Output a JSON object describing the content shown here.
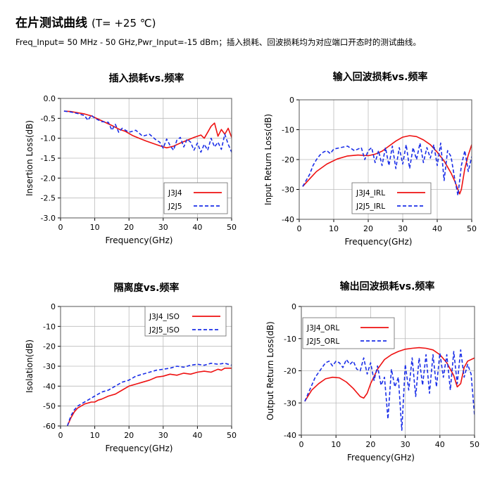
{
  "header": {
    "title": "在片测试曲线",
    "condition": "(T= +25 ℃)",
    "subtitle": "Freq_Input= 50 MHz - 50 GHz,Pwr_Input=-15 dBm；插入损耗、回波损耗均为对应端口开态时的测试曲线。"
  },
  "colors": {
    "red": "#ee1111",
    "blue": "#1a2ee8",
    "grid": "#bbbbbb"
  },
  "chart_data": [
    {
      "id": "il",
      "type": "line",
      "title": "插入损耗vs.频率",
      "xlabel": "Frequency(GHz)",
      "ylabel": "Insertion Loss(dB)",
      "xlim": [
        0,
        50
      ],
      "ylim": [
        -3.0,
        0.0
      ],
      "xticks": [
        0,
        10,
        20,
        30,
        40,
        50
      ],
      "yticks": [
        0.0,
        -0.5,
        -1.0,
        -1.5,
        -2.0,
        -2.5,
        -3.0
      ],
      "ytick_labels": [
        "0.0",
        "-0.5",
        "-1.0",
        "-1.5",
        "-2.0",
        "-2.5",
        "-3.0"
      ],
      "legend_position": "bottom-right",
      "series": [
        {
          "name": "J3J4",
          "color": "red",
          "dashed": false,
          "x": [
            1,
            3,
            5,
            7,
            9,
            11,
            13,
            15,
            17,
            19,
            21,
            23,
            25,
            27,
            29,
            31,
            33,
            35,
            37,
            39,
            41,
            42,
            43,
            44,
            45,
            46,
            47,
            48,
            49,
            50
          ],
          "y": [
            -0.32,
            -0.33,
            -0.36,
            -0.39,
            -0.44,
            -0.52,
            -0.6,
            -0.68,
            -0.77,
            -0.83,
            -0.93,
            -1.0,
            -1.07,
            -1.13,
            -1.19,
            -1.24,
            -1.2,
            -1.12,
            -1.05,
            -0.98,
            -0.92,
            -1.0,
            -0.85,
            -0.7,
            -0.62,
            -0.95,
            -0.78,
            -0.9,
            -0.75,
            -0.98
          ]
        },
        {
          "name": "J2J5",
          "color": "blue",
          "dashed": true,
          "x": [
            1,
            3,
            5,
            7,
            8,
            9,
            10,
            12,
            14,
            15,
            16,
            17,
            18,
            20,
            22,
            24,
            26,
            28,
            29,
            30,
            31,
            32,
            33,
            34,
            35,
            36,
            37,
            38,
            39,
            40,
            41,
            42,
            43,
            44,
            45,
            46,
            47,
            48,
            49,
            50
          ],
          "y": [
            -0.32,
            -0.34,
            -0.38,
            -0.43,
            -0.55,
            -0.42,
            -0.5,
            -0.58,
            -0.6,
            -0.8,
            -0.65,
            -0.85,
            -0.75,
            -0.85,
            -0.8,
            -0.95,
            -0.9,
            -1.05,
            -1.1,
            -1.25,
            -1.02,
            -1.18,
            -1.3,
            -1.05,
            -0.98,
            -1.22,
            -1.02,
            -1.1,
            -1.3,
            -1.12,
            -1.35,
            -1.15,
            -1.3,
            -1.0,
            -1.22,
            -1.1,
            -1.28,
            -0.9,
            -1.15,
            -1.35
          ]
        }
      ]
    },
    {
      "id": "irl",
      "type": "line",
      "title": "输入回波损耗vs.频率",
      "xlabel": "Frequency(GHz)",
      "ylabel": "Input Return Loss(dB)",
      "xlim": [
        0,
        50
      ],
      "ylim": [
        -40,
        0
      ],
      "xticks": [
        0,
        10,
        20,
        30,
        40,
        50
      ],
      "yticks": [
        0,
        -10,
        -20,
        -30,
        -40
      ],
      "ytick_labels": [
        "0",
        "-10",
        "-20",
        "-30",
        "-40"
      ],
      "legend_position": "bottom-center",
      "series": [
        {
          "name": "J3J4_IRL",
          "color": "red",
          "dashed": false,
          "x": [
            1,
            3,
            5,
            8,
            11,
            14,
            17,
            20,
            22,
            24,
            26,
            28,
            30,
            32,
            34,
            36,
            38,
            40,
            42,
            44,
            45,
            46,
            46.5,
            47,
            48,
            49,
            50
          ],
          "y": [
            -29,
            -26.5,
            -24,
            -21.5,
            -19.8,
            -18.8,
            -18.5,
            -18.7,
            -18.2,
            -17.2,
            -15.5,
            -13.8,
            -12.5,
            -12,
            -12.3,
            -13.4,
            -15,
            -17.5,
            -20.5,
            -24.5,
            -27,
            -30,
            -31.5,
            -30,
            -23,
            -18.5,
            -15
          ]
        },
        {
          "name": "J2J5_IRL",
          "color": "blue",
          "dashed": true,
          "x": [
            1,
            2,
            3,
            4,
            5,
            6,
            7,
            8,
            9,
            10,
            12,
            14,
            16,
            18,
            19,
            20,
            21,
            22,
            23,
            24,
            25,
            26,
            27,
            28,
            29,
            30,
            31,
            32,
            33,
            34,
            35,
            36,
            37,
            38,
            39,
            40,
            41,
            42,
            43,
            44,
            45,
            46,
            47,
            48,
            49,
            50
          ],
          "y": [
            -29,
            -27,
            -25,
            -22,
            -20,
            -18.5,
            -17.5,
            -17,
            -18,
            -16.5,
            -16,
            -15.5,
            -17,
            -16,
            -20,
            -17,
            -16,
            -21,
            -17,
            -22,
            -16,
            -22,
            -15.5,
            -23,
            -16,
            -21.5,
            -15,
            -23,
            -16,
            -20,
            -14.5,
            -21,
            -16,
            -19.5,
            -15,
            -22,
            -14.5,
            -27,
            -17,
            -19,
            -26,
            -32,
            -22,
            -17,
            -24,
            -19
          ]
        }
      ]
    },
    {
      "id": "iso",
      "type": "line",
      "title": "隔离度vs.频率",
      "xlabel": "Frequency(GHz)",
      "ylabel": "Isolation(dB)",
      "xlim": [
        0,
        50
      ],
      "ylim": [
        -60,
        0
      ],
      "xticks": [
        0,
        10,
        20,
        30,
        40,
        50
      ],
      "yticks": [
        0,
        -10,
        -20,
        -30,
        -40,
        -50,
        -60
      ],
      "ytick_labels": [
        "0",
        "-10",
        "-20",
        "-30",
        "-40",
        "-50",
        "-60"
      ],
      "legend_position": "top-right",
      "series": [
        {
          "name": "J3J4_ISO",
          "color": "red",
          "dashed": false,
          "x": [
            2,
            3,
            4,
            5,
            6,
            7,
            8,
            9,
            10,
            11,
            12,
            14,
            16,
            18,
            20,
            22,
            24,
            26,
            28,
            30,
            32,
            34,
            36,
            38,
            40,
            42,
            44,
            46,
            47,
            48,
            50
          ],
          "y": [
            -60,
            -56,
            -53,
            -51,
            -50,
            -49,
            -48.5,
            -48,
            -48,
            -47,
            -46.5,
            -45,
            -44,
            -42,
            -40,
            -39,
            -38,
            -37,
            -35.5,
            -35,
            -34,
            -34.5,
            -33.5,
            -34,
            -33,
            -32.5,
            -33,
            -31.5,
            -32,
            -31,
            -31
          ]
        },
        {
          "name": "J2J5_ISO",
          "color": "blue",
          "dashed": true,
          "x": [
            2,
            3,
            4,
            5,
            6,
            7,
            8,
            10,
            12,
            14,
            16,
            18,
            20,
            22,
            24,
            26,
            28,
            30,
            32,
            34,
            36,
            38,
            40,
            42,
            44,
            46,
            48,
            50
          ],
          "y": [
            -60,
            -55,
            -52,
            -50,
            -49,
            -48,
            -47,
            -45,
            -43,
            -42,
            -40,
            -38,
            -37,
            -35,
            -34,
            -33,
            -32,
            -31.5,
            -31,
            -30,
            -30.5,
            -29.5,
            -29,
            -29.5,
            -28.5,
            -29,
            -28.5,
            -29.5
          ]
        }
      ]
    },
    {
      "id": "orl",
      "type": "line",
      "title": "输出回波损耗vs.频率",
      "xlabel": "Frequency(GHz)",
      "ylabel": "Output Return Loss(dB)",
      "xlim": [
        0,
        50
      ],
      "ylim": [
        -40,
        0
      ],
      "xticks": [
        0,
        10,
        20,
        30,
        40,
        50
      ],
      "yticks": [
        0,
        -10,
        -20,
        -30,
        -40
      ],
      "ytick_labels": [
        "0",
        "-10",
        "-20",
        "-30",
        "-40"
      ],
      "legend_position": "top-left",
      "series": [
        {
          "name": "J3J4_ORL",
          "color": "red",
          "dashed": false,
          "x": [
            1,
            3,
            5,
            7,
            9,
            11,
            13,
            15,
            17,
            18,
            19,
            20,
            22,
            24,
            26,
            28,
            30,
            32,
            34,
            36,
            38,
            40,
            42,
            44,
            45,
            46,
            47,
            48,
            50
          ],
          "y": [
            -29.5,
            -26,
            -24,
            -22.5,
            -22,
            -22.2,
            -23.5,
            -25.5,
            -28,
            -28.5,
            -27,
            -24,
            -19.5,
            -16.5,
            -15,
            -14,
            -13.3,
            -13,
            -12.8,
            -13,
            -13.5,
            -15,
            -17.5,
            -21.5,
            -25,
            -24,
            -19,
            -17,
            -16
          ]
        },
        {
          "name": "J2J5_ORL",
          "color": "blue",
          "dashed": true,
          "x": [
            1,
            2,
            3,
            4,
            5,
            6,
            7,
            8,
            9,
            10,
            11,
            12,
            13,
            14,
            15,
            16,
            17,
            18,
            19,
            20,
            21,
            22,
            23,
            24,
            25,
            26,
            27,
            28,
            29,
            30,
            31,
            32,
            33,
            34,
            35,
            36,
            37,
            38,
            39,
            40,
            41,
            42,
            43,
            44,
            45,
            46,
            47,
            48,
            49,
            50
          ],
          "y": [
            -29.5,
            -27,
            -24.5,
            -22,
            -20.5,
            -19,
            -17.5,
            -17,
            -18.5,
            -17,
            -17.5,
            -19,
            -16.5,
            -18,
            -17,
            -19.5,
            -20,
            -16,
            -21,
            -17.5,
            -23,
            -18.5,
            -24.5,
            -22,
            -35,
            -19.5,
            -25,
            -22,
            -38.5,
            -18,
            -26,
            -16,
            -28,
            -16,
            -24.5,
            -15,
            -27,
            -15,
            -25,
            -14.5,
            -22,
            -15,
            -26,
            -14,
            -24,
            -13.5,
            -22,
            -18,
            -21,
            -34
          ]
        }
      ]
    }
  ]
}
